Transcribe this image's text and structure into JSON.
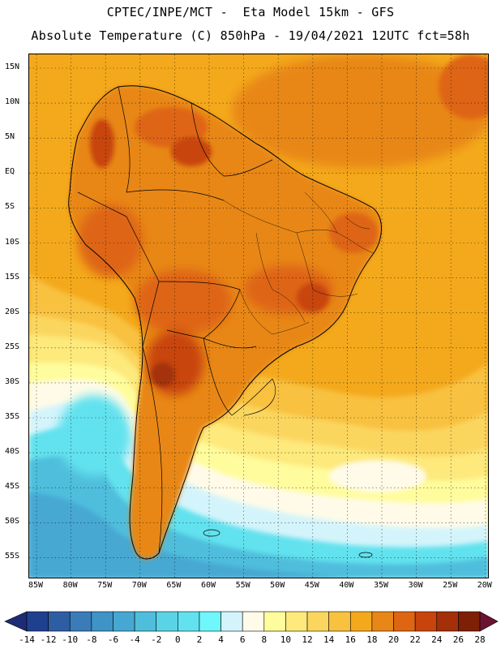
{
  "header": {
    "title_line1": "CPTEC/INPE/MCT -  Eta Model 15km - GFS",
    "title_line2": "Absolute Temperature (C) 850hPa - 19/04/2021 12UTC fct=58h"
  },
  "map": {
    "region": "South America",
    "variable": "Absolute Temperature (C) 850hPa",
    "lat_labels": [
      "15N",
      "10N",
      "5N",
      "EQ",
      "5S",
      "10S",
      "15S",
      "20S",
      "25S",
      "30S",
      "35S",
      "40S",
      "45S",
      "50S",
      "55S"
    ],
    "lon_labels": [
      "85W",
      "80W",
      "75W",
      "70W",
      "65W",
      "60W",
      "55W",
      "50W",
      "45W",
      "40W",
      "35W",
      "30W",
      "25W",
      "20W"
    ]
  },
  "colorbar": {
    "labels": [
      "-14",
      "-12",
      "-10",
      "-8",
      "-6",
      "-4",
      "-2",
      "0",
      "2",
      "4",
      "6",
      "8",
      "10",
      "12",
      "14",
      "16",
      "18",
      "20",
      "22",
      "24",
      "26",
      "28"
    ],
    "colors": [
      "#1f3f8f",
      "#2d5ea3",
      "#3a7cb8",
      "#3f93c6",
      "#46a8d2",
      "#4fbedc",
      "#5bd3e6",
      "#62e2ee",
      "#6ff7fb",
      "#d4f4fb",
      "#fffbe8",
      "#fffc9d",
      "#fde97c",
      "#fbd65e",
      "#f8c140",
      "#f4a91c",
      "#e88718",
      "#de6512",
      "#c8440c",
      "#a33008",
      "#7d2006"
    ],
    "under_color": "#1d2c75",
    "over_color": "#6a1430"
  }
}
